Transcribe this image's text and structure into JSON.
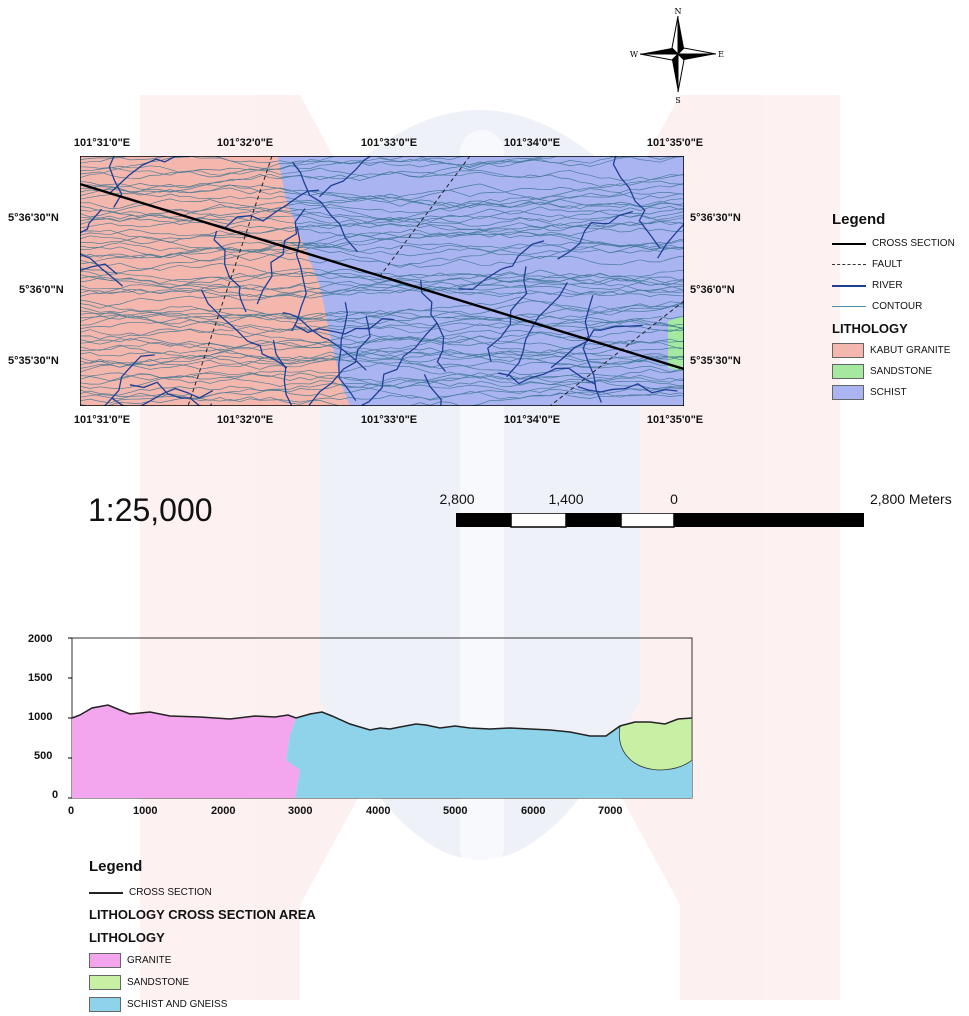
{
  "north_arrow": {
    "n": "N",
    "s": "S",
    "e": "E",
    "w": "W"
  },
  "map": {
    "top_longitudes": [
      "101°31'0\"E",
      "101°32'0\"E",
      "101°33'0\"E",
      "101°34'0\"E",
      "101°35'0\"E"
    ],
    "bottom_longitudes": [
      "101°31'0\"E",
      "101°32'0\"E",
      "101°33'0\"E",
      "101°34'0\"E",
      "101°35'0\"E"
    ],
    "left_latitudes": [
      "5°36'30\"N",
      "5°36'0\"N",
      "5°35'30\"N"
    ],
    "right_latitudes": [
      "5°36'30\"N",
      "5°36'0\"N",
      "5°35'30\"N"
    ],
    "colors": {
      "granite": "#f3b7ae",
      "sandstone": "#a5e8a0",
      "schist": "#aab4f0",
      "river": "#1f3f96",
      "contour": "#2f6f8c"
    }
  },
  "map_legend": {
    "title": "Legend",
    "lines": [
      {
        "label": "CROSS SECTION",
        "style": "solid-black"
      },
      {
        "label": "FAULT",
        "style": "dashed"
      },
      {
        "label": "RIVER",
        "style": "blue"
      },
      {
        "label": "CONTOUR",
        "style": "teal"
      }
    ],
    "lithology_title": "LITHOLOGY",
    "lithology": [
      {
        "label": "KABUT GRANITE",
        "color": "#f3b7ae"
      },
      {
        "label": "SANDSTONE",
        "color": "#a5e8a0"
      },
      {
        "label": "SCHIST",
        "color": "#aab4f0"
      }
    ]
  },
  "scale": {
    "ratio": "1:25,000",
    "labels": [
      "2,800",
      "1,400",
      "0",
      "2,800 Meters"
    ]
  },
  "cross_section": {
    "y_ticks": [
      "2000",
      "1500",
      "1000",
      "500",
      "0"
    ],
    "x_ticks": [
      "0",
      "1000",
      "2000",
      "3000",
      "4000",
      "5000",
      "6000",
      "7000"
    ],
    "xlim": [
      0,
      8000
    ],
    "ylim": [
      0,
      2000
    ],
    "colors": {
      "granite": "#f3a6ee",
      "schist": "#8fd3ea",
      "sandstone": "#c8f0a4"
    }
  },
  "section_legend": {
    "title": "Legend",
    "line_label": "CROSS SECTION",
    "area_title": "LITHOLOGY CROSS SECTION AREA",
    "lithology_title": "LITHOLOGY",
    "items": [
      {
        "label": "GRANITE",
        "color": "#f3a6ee"
      },
      {
        "label": "SANDSTONE",
        "color": "#c8f0a4"
      },
      {
        "label": "SCHIST AND GNEISS",
        "color": "#8fd3ea"
      }
    ]
  }
}
